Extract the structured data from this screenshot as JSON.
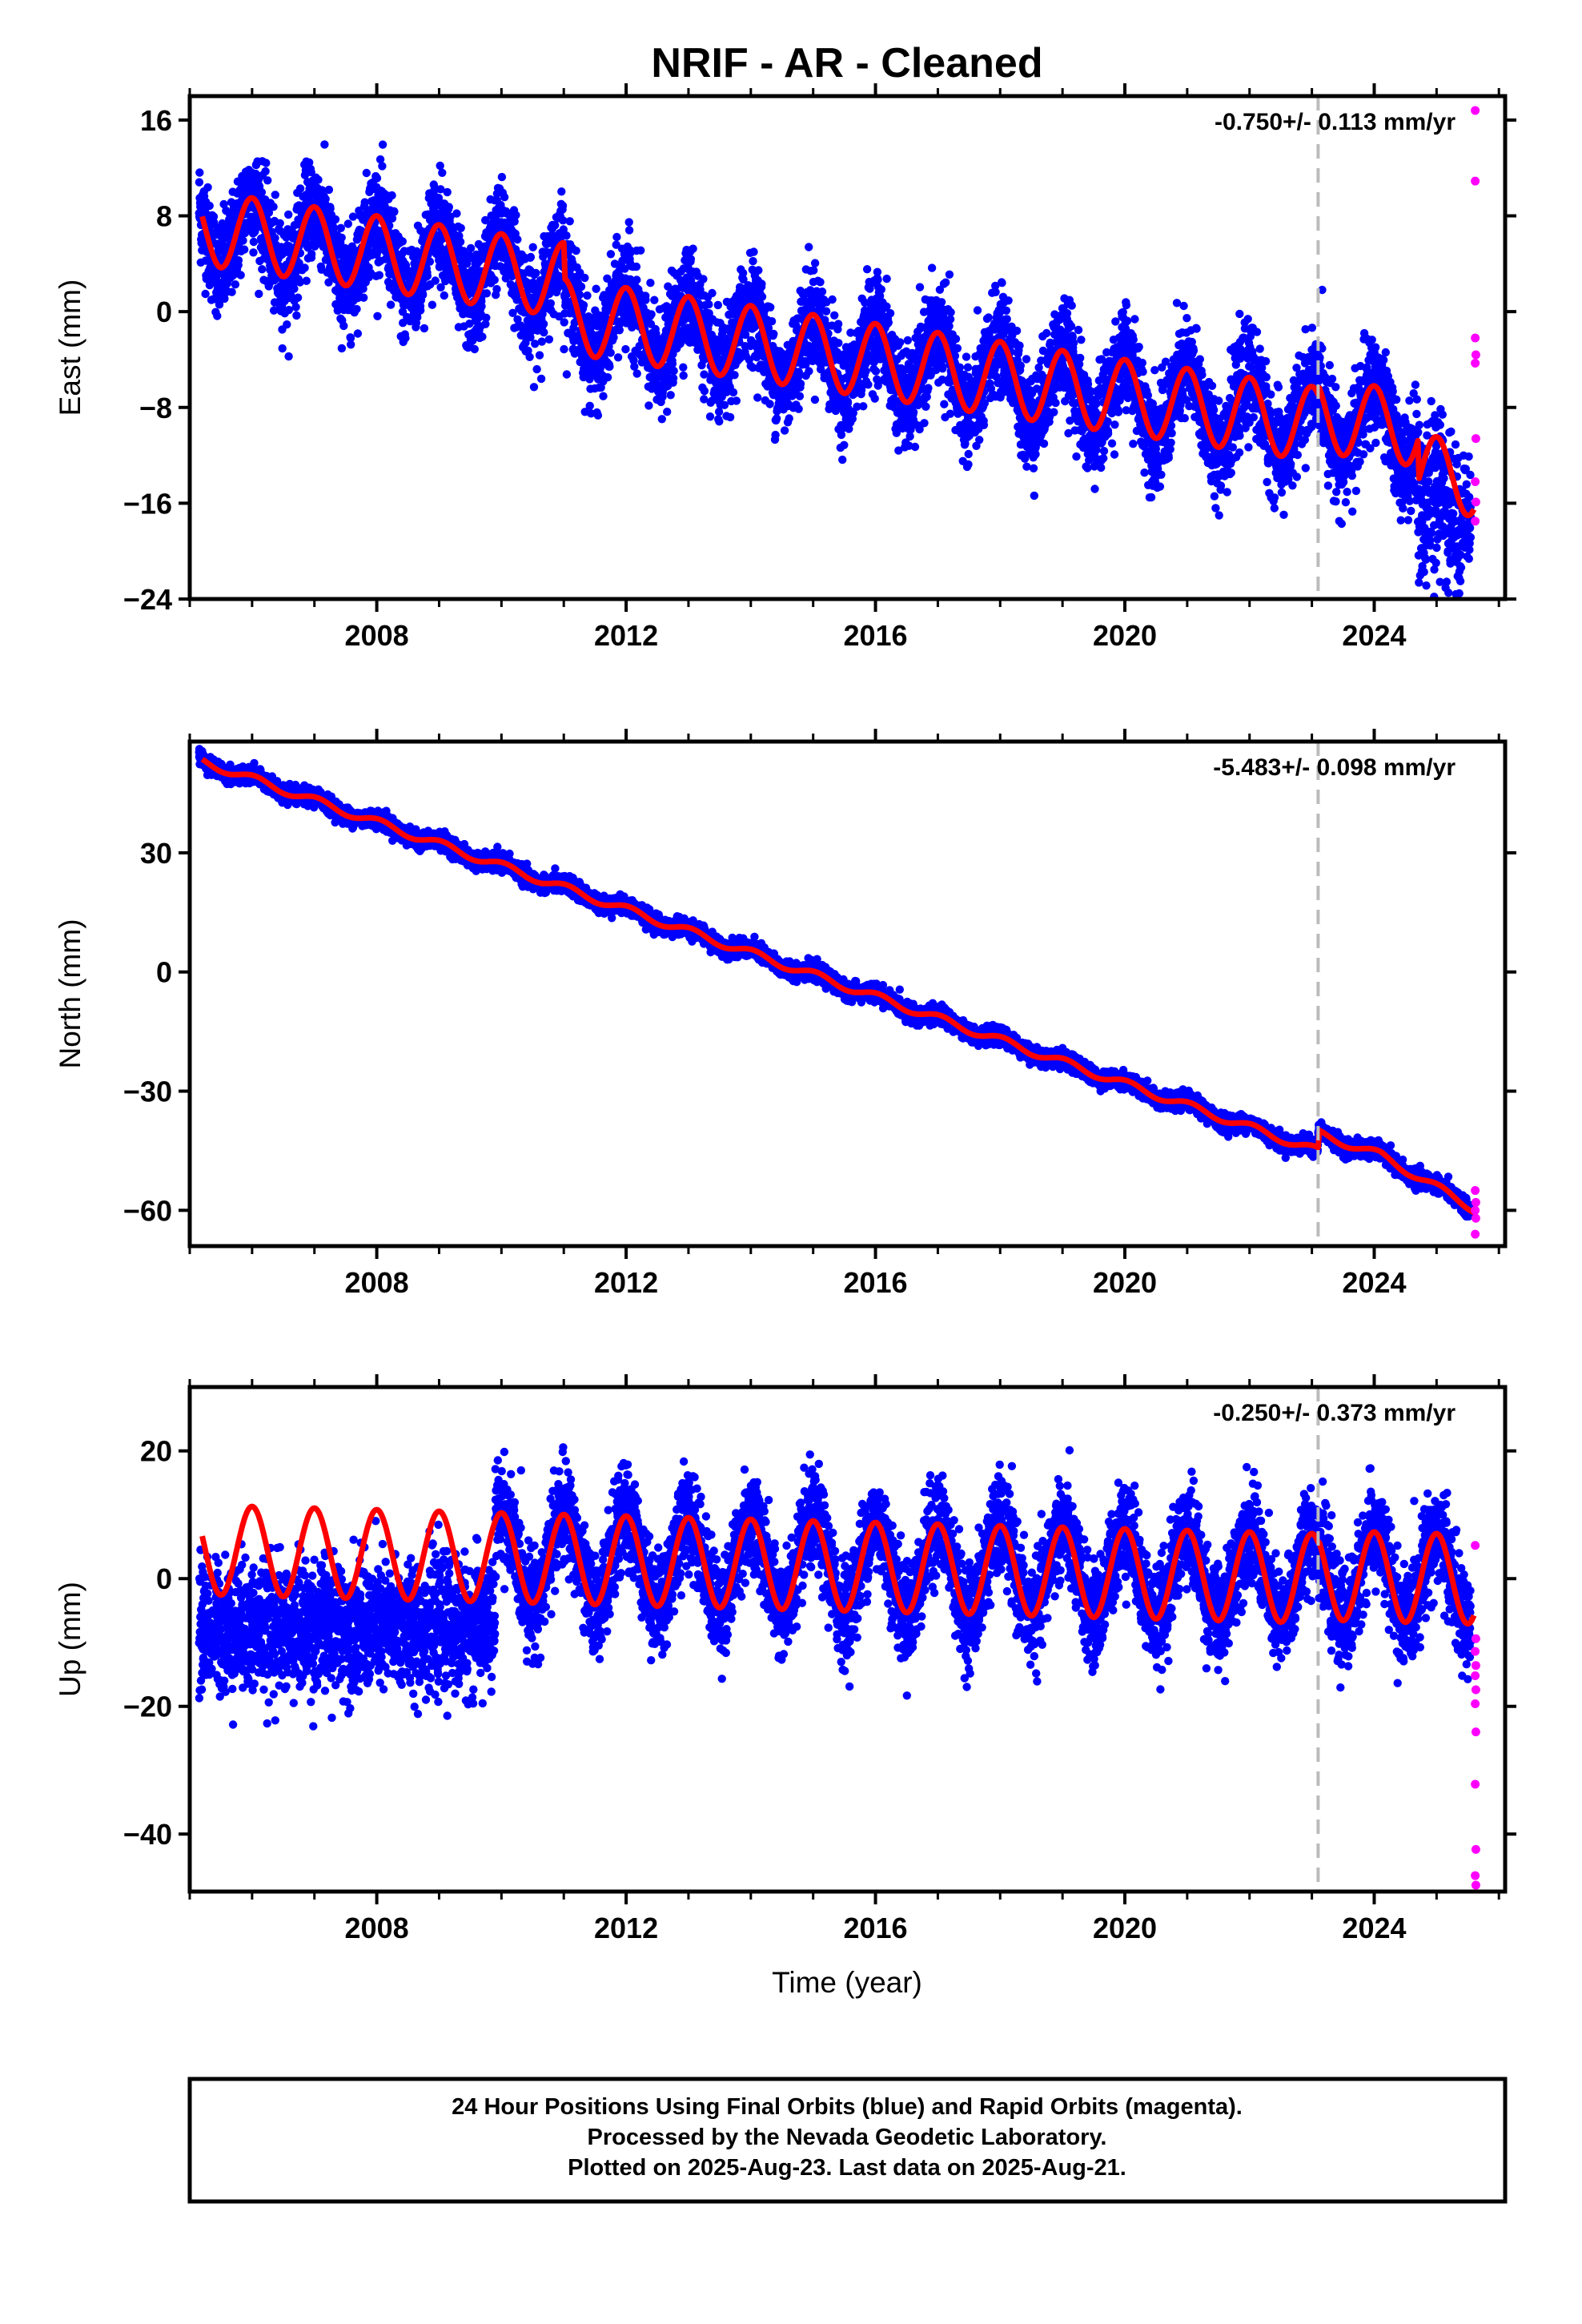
{
  "title": "NRIF  - AR - Cleaned",
  "colors": {
    "final_orbits": "#0000ff",
    "rapid_orbits": "#ff00ff",
    "model_fit": "#ff0000",
    "event_line": "#bbbbbb",
    "frame": "#000000"
  },
  "chart_data": [
    {
      "type": "scatter",
      "panel": "east",
      "ylabel": "East (mm)",
      "xlabel": "",
      "rate_text": "-0.750+/- 0.113 mm/yr",
      "xlim": [
        2005.0,
        2026.1
      ],
      "ylim": [
        -24,
        18
      ],
      "yticks": [
        16,
        8,
        0,
        -8,
        -16,
        -24
      ],
      "ytick_labels": [
        "16",
        "8",
        "0",
        "−8",
        "−16",
        "−24"
      ],
      "xticks": [
        2008,
        2012,
        2016,
        2020,
        2024
      ],
      "xtick_labels": [
        "2008",
        "2012",
        "2016",
        "2020",
        "2024"
      ],
      "event_x": 2023.1,
      "series": [
        {
          "name": "Final Orbits",
          "color": "#0000ff",
          "data_start": 2005.15,
          "data_end": 2025.55
        },
        {
          "name": "Rapid Orbits",
          "color": "#ff00ff",
          "points": [
            [
              2025.62,
              16.8
            ],
            [
              2025.62,
              10.9
            ],
            [
              2025.62,
              -2.2
            ],
            [
              2025.63,
              -3.6
            ],
            [
              2025.62,
              -4.3
            ],
            [
              2025.63,
              -10.6
            ],
            [
              2025.62,
              -14.2
            ],
            [
              2025.63,
              -15.9
            ],
            [
              2025.62,
              -17.5
            ]
          ]
        },
        {
          "name": "Model Fit",
          "color": "#ff0000"
        }
      ],
      "model": {
        "offset": 7.0,
        "rate": -0.75,
        "amplitude": 3.1,
        "phase": 0.45,
        "t0": 2005.2,
        "events": [
          [
            2011.0,
            -3.0
          ],
          [
            2023.1,
            0.8
          ],
          [
            2024.7,
            -3.5
          ]
        ]
      },
      "scatter_noise": 2.6
    },
    {
      "type": "scatter",
      "panel": "north",
      "ylabel": "North (mm)",
      "xlabel": "",
      "rate_text": "-5.483+/- 0.098 mm/yr",
      "xlim": [
        2005.0,
        2026.1
      ],
      "ylim": [
        -69,
        58
      ],
      "yticks": [
        30,
        0,
        -30,
        -60
      ],
      "ytick_labels": [
        "30",
        "0",
        "−30",
        "−60"
      ],
      "xticks": [
        2008,
        2012,
        2016,
        2020,
        2024
      ],
      "xtick_labels": [
        "2008",
        "2012",
        "2016",
        "2020",
        "2024"
      ],
      "event_x": 2023.1,
      "series": [
        {
          "name": "Final Orbits",
          "color": "#0000ff",
          "data_start": 2005.15,
          "data_end": 2025.55
        },
        {
          "name": "Rapid Orbits",
          "color": "#ff00ff",
          "points": [
            [
              2025.62,
              -55
            ],
            [
              2025.63,
              -58
            ],
            [
              2025.62,
              -60
            ],
            [
              2025.63,
              -62
            ],
            [
              2025.62,
              -66
            ]
          ]
        },
        {
          "name": "Model Fit",
          "color": "#ff0000"
        }
      ],
      "model": {
        "offset": 53.0,
        "rate": -5.483,
        "amplitude": 1.0,
        "phase": 0.4,
        "t0": 2005.2,
        "events": [
          [
            2023.1,
            4.5
          ]
        ],
        "extra_rate_after": [
          2024.1,
          -3.5
        ]
      },
      "scatter_noise": 1.3
    },
    {
      "type": "scatter",
      "panel": "up",
      "ylabel": "Up (mm)",
      "xlabel": "Time (year)",
      "rate_text": "-0.250+/- 0.373 mm/yr",
      "xlim": [
        2005.0,
        2026.1
      ],
      "ylim": [
        -49,
        30
      ],
      "yticks": [
        20,
        0,
        -20,
        -40
      ],
      "ytick_labels": [
        "20",
        "0",
        "−20",
        "−40"
      ],
      "xticks": [
        2008,
        2012,
        2016,
        2020,
        2024
      ],
      "xtick_labels": [
        "2008",
        "2012",
        "2016",
        "2020",
        "2024"
      ],
      "event_x": 2023.1,
      "series": [
        {
          "name": "Final Orbits",
          "color": "#0000ff",
          "data_start": 2005.15,
          "data_end": 2025.55
        },
        {
          "name": "Rapid Orbits",
          "color": "#ff00ff",
          "points": [
            [
              2025.62,
              5.2
            ],
            [
              2025.63,
              -9.4
            ],
            [
              2025.62,
              -11.4
            ],
            [
              2025.63,
              -13.6
            ],
            [
              2025.62,
              -15.2
            ],
            [
              2025.63,
              -17.4
            ],
            [
              2025.62,
              -19.6
            ],
            [
              2025.63,
              -24.0
            ],
            [
              2025.62,
              -32.2
            ],
            [
              2025.63,
              -42.4
            ],
            [
              2025.62,
              -46.5
            ],
            [
              2025.63,
              -48.0
            ]
          ]
        },
        {
          "name": "Model Fit",
          "color": "#ff0000"
        }
      ],
      "model": {
        "offset": 4.5,
        "rate": -0.25,
        "amplitude": 7.0,
        "phase": 0.45,
        "t0": 2005.2,
        "events": [
          [
            2023.1,
            0.5
          ]
        ]
      },
      "scatter_noise": 4.8,
      "low_segment": {
        "start": 2005.15,
        "end": 2009.9,
        "center": -7.5,
        "spread": 5.0
      }
    }
  ],
  "footer": {
    "line1": "24 Hour Positions Using Final Orbits (blue) and Rapid Orbits (magenta).",
    "line2": "Processed by the Nevada Geodetic Laboratory.",
    "line3": "Plotted on 2025-Aug-23. Last data on 2025-Aug-21."
  }
}
